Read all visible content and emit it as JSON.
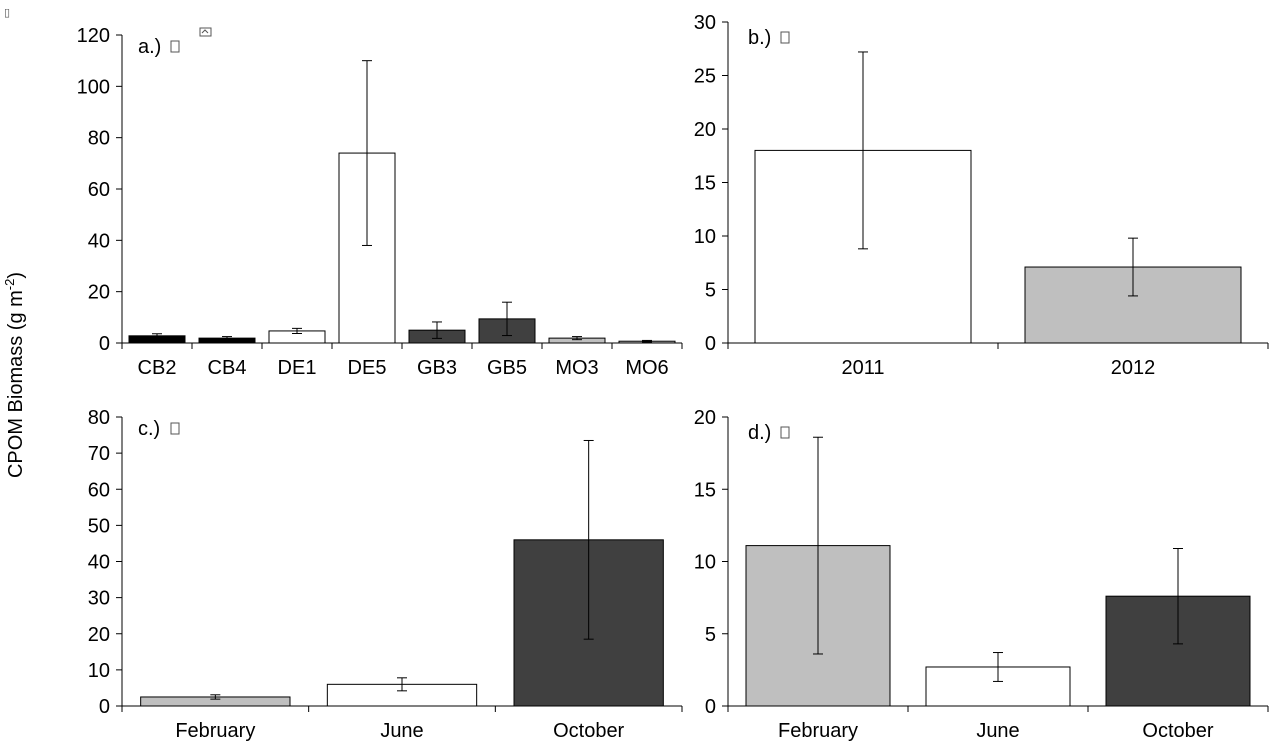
{
  "figure": {
    "ylabel": {
      "main": "CPOM Biomass (g m",
      "sup": "-2",
      "close": ")"
    },
    "stray_glyph": "▯"
  },
  "chart_data": [
    {
      "panel": "a",
      "type": "bar",
      "label": "a.)",
      "categories": [
        "CB2",
        "CB4",
        "DE1",
        "DE5",
        "GB3",
        "GB5",
        "MO3",
        "MO6"
      ],
      "values": [
        2.8,
        1.9,
        4.7,
        74,
        5,
        9.4,
        1.9,
        0.7
      ],
      "errors": [
        0.8,
        0.6,
        1.0,
        36,
        3.2,
        6.5,
        0.6,
        0.3
      ],
      "colors": [
        "#000000",
        "#000000",
        "#ffffff",
        "#ffffff",
        "#404040",
        "#404040",
        "#bfbfbf",
        "#bfbfbf"
      ],
      "ylim": [
        0,
        120
      ],
      "yticks": [
        0,
        20,
        40,
        60,
        80,
        100,
        120
      ]
    },
    {
      "panel": "b",
      "type": "bar",
      "label": "b.)",
      "categories": [
        "2011",
        "2012"
      ],
      "values": [
        18,
        7.1
      ],
      "errors": [
        9.2,
        2.7
      ],
      "colors": [
        "#ffffff",
        "#bfbfbf"
      ],
      "ylim": [
        0,
        30
      ],
      "yticks": [
        0,
        5,
        10,
        15,
        20,
        25,
        30
      ]
    },
    {
      "panel": "c",
      "type": "bar",
      "label": "c.)",
      "categories": [
        "February",
        "June",
        "October"
      ],
      "values": [
        2.5,
        6,
        46
      ],
      "errors": [
        0.6,
        1.8,
        27.5
      ],
      "colors": [
        "#bfbfbf",
        "#ffffff",
        "#404040"
      ],
      "ylim": [
        0,
        80
      ],
      "yticks": [
        0,
        10,
        20,
        30,
        40,
        50,
        60,
        70,
        80
      ]
    },
    {
      "panel": "d",
      "type": "bar",
      "label": "d.)",
      "categories": [
        "February",
        "June",
        "October"
      ],
      "values": [
        11.1,
        2.7,
        7.6
      ],
      "errors": [
        7.5,
        1,
        3.3
      ],
      "colors": [
        "#bfbfbf",
        "#ffffff",
        "#404040"
      ],
      "ylim": [
        0,
        20
      ],
      "yticks": [
        0,
        5,
        10,
        15,
        20
      ]
    }
  ]
}
